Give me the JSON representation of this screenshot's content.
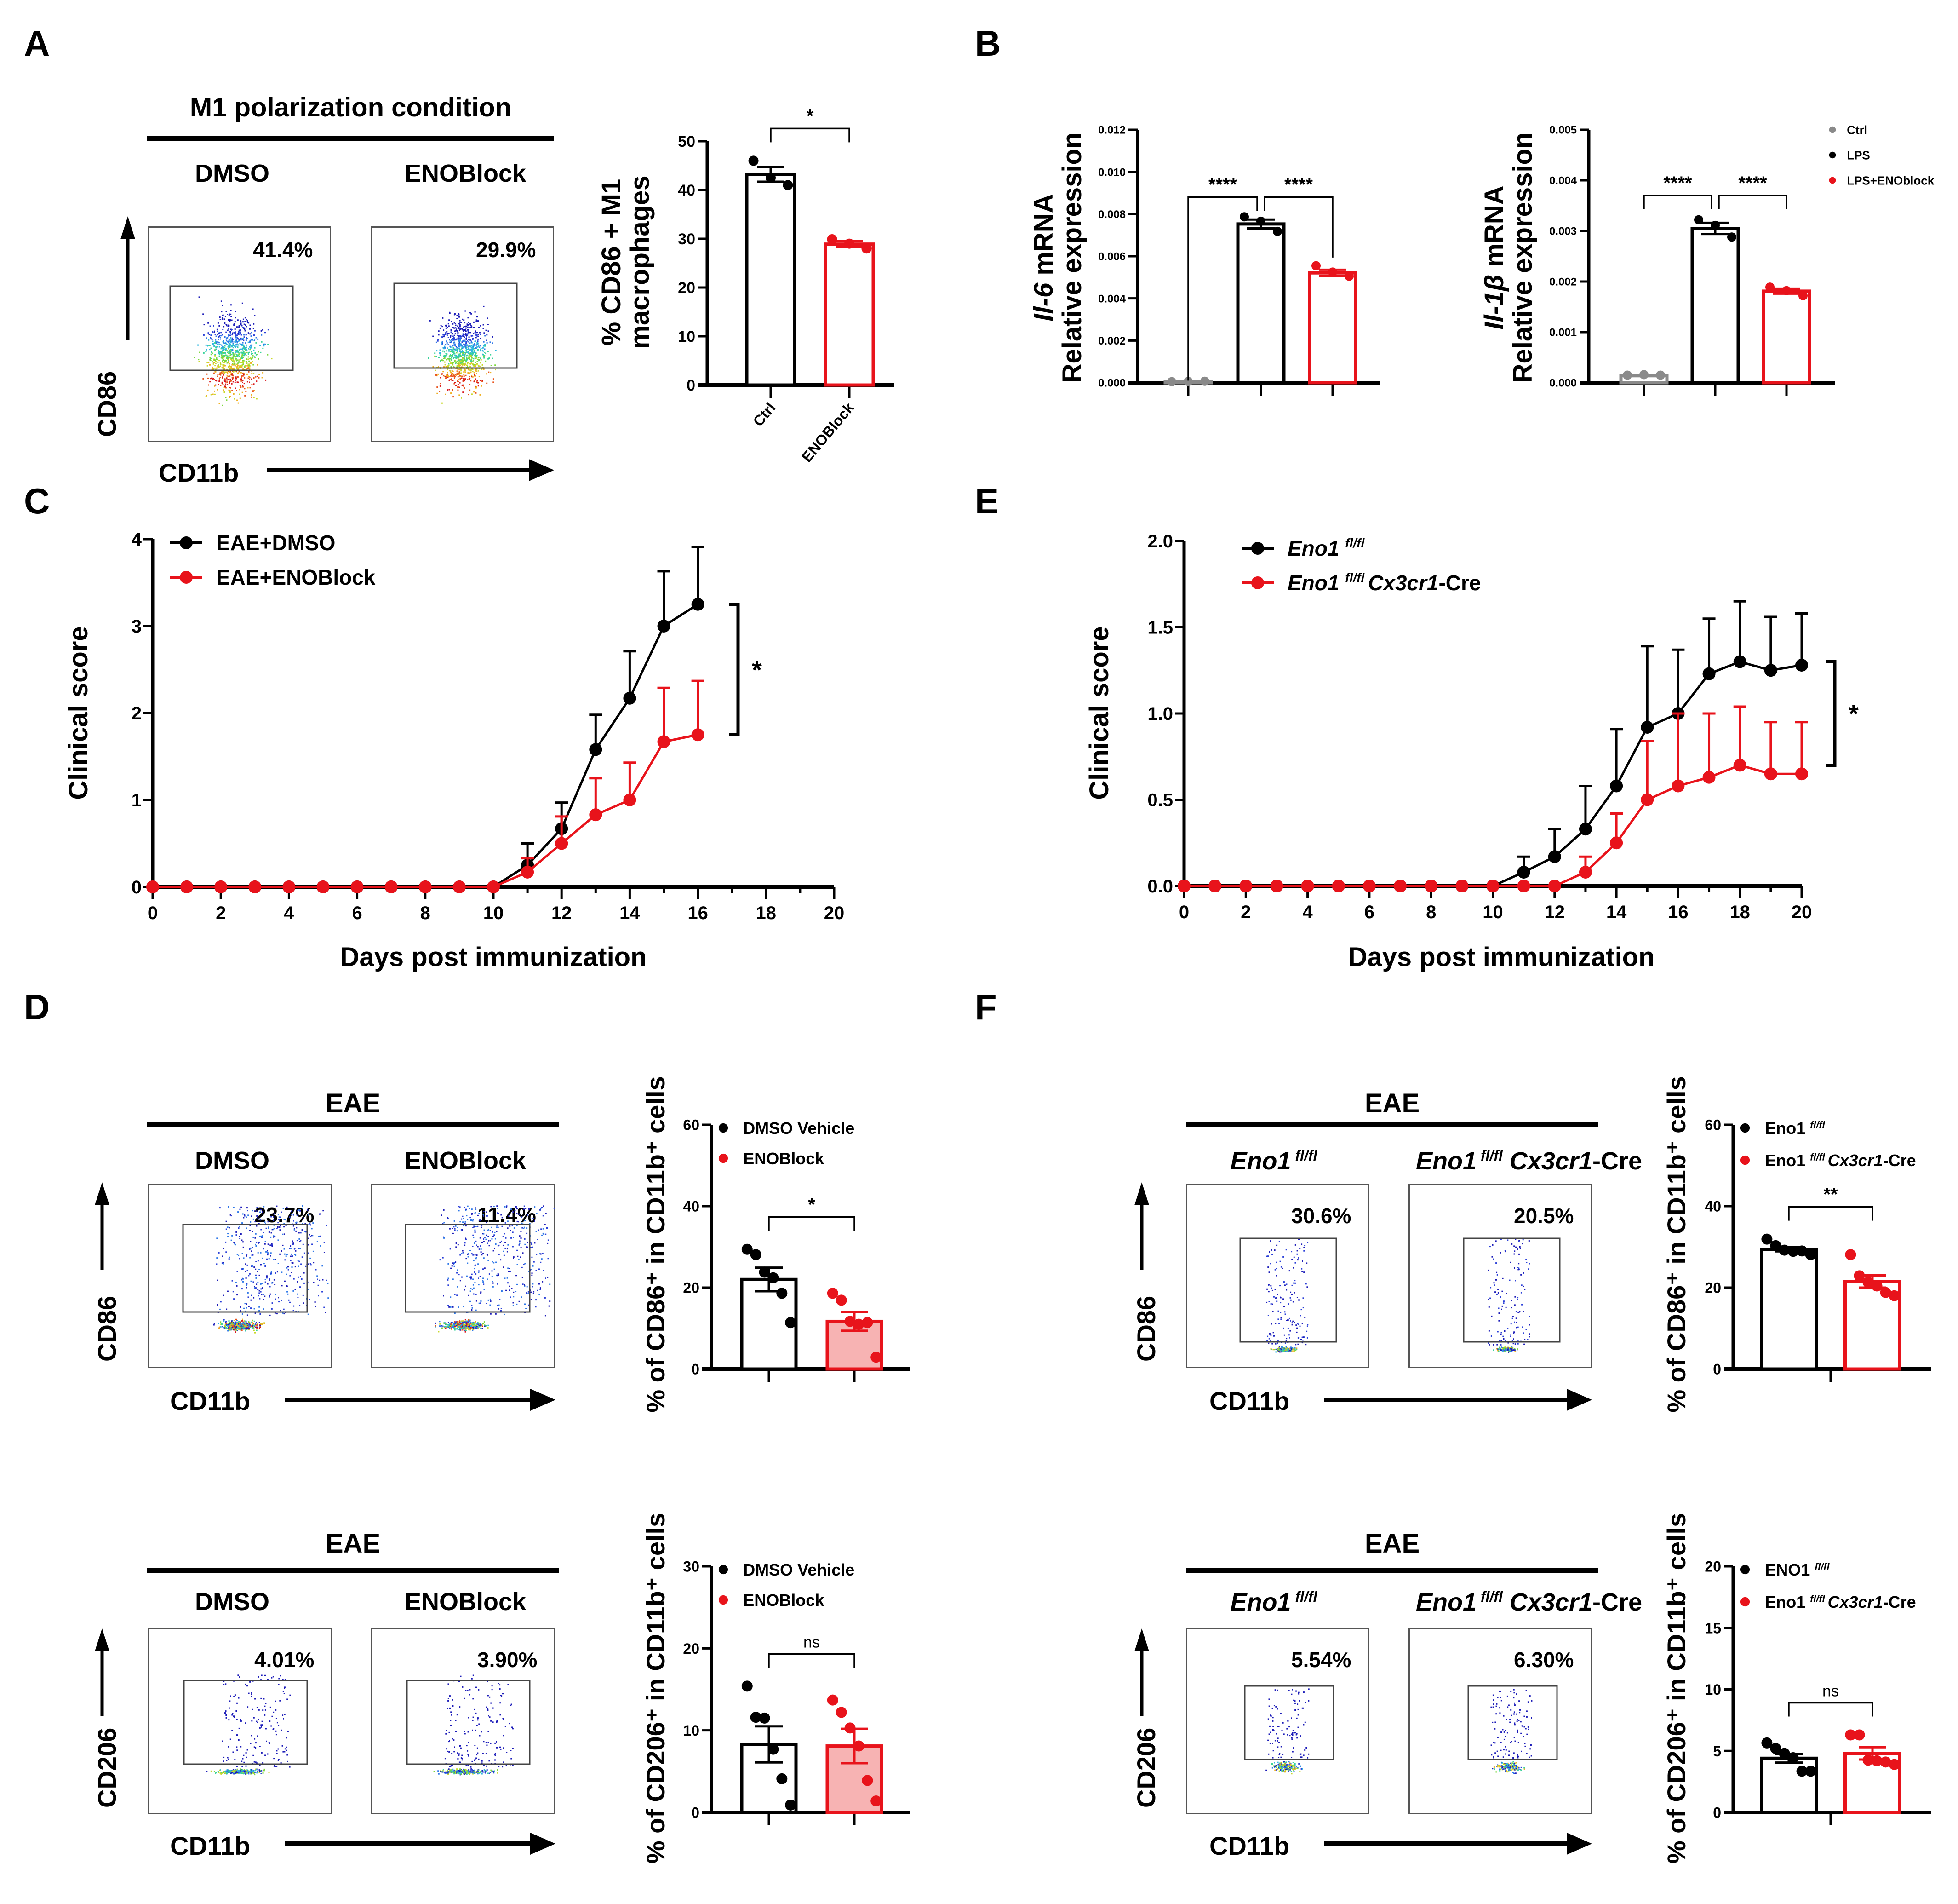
{
  "figure": {
    "panel_labels": [
      "A",
      "B",
      "C",
      "D",
      "E",
      "F"
    ]
  },
  "panelA": {
    "title": "M1 polarization condition",
    "conditions": [
      "DMSO",
      "ENOBlock"
    ],
    "flow_percentages": [
      "41.4%",
      "29.9%"
    ],
    "y_marker": "CD86",
    "x_marker": "CD11b"
  },
  "panelD_top": {
    "title": "EAE",
    "conditions": [
      "DMSO",
      "ENOBlock"
    ],
    "flow_percentages": [
      "23.7%",
      "11.4%"
    ],
    "y_marker": "CD86",
    "x_marker": "CD11b"
  },
  "panelD_bottom": {
    "title": "EAE",
    "conditions": [
      "DMSO",
      "ENOBlock"
    ],
    "flow_percentages": [
      "4.01%",
      "3.90%"
    ],
    "y_marker": "CD206",
    "x_marker": "CD11b"
  },
  "panelF_top": {
    "title": "EAE",
    "conditions": [
      {
        "gene": "Eno1",
        "sup": "fl/fl",
        "suffix_italic": "",
        "suffix": ""
      },
      {
        "gene": "Eno1",
        "sup": "fl/fl",
        "suffix_italic": "Cx3cr1",
        "suffix": "-Cre"
      }
    ],
    "flow_percentages": [
      "30.6%",
      "20.5%"
    ],
    "y_marker": "CD86",
    "x_marker": "CD11b"
  },
  "panelF_bottom": {
    "title": "EAE",
    "conditions": [
      {
        "gene": "Eno1",
        "sup": "fl/fl",
        "suffix_italic": "",
        "suffix": ""
      },
      {
        "gene": "Eno1",
        "sup": "fl/fl",
        "suffix_italic": "Cx3cr1",
        "suffix": "-Cre"
      }
    ],
    "flow_percentages": [
      "5.54%",
      "6.30%"
    ],
    "y_marker": "CD206",
    "x_marker": "CD11b"
  },
  "colors": {
    "black": "#000000",
    "red": "#e8131b",
    "gray": "#8a8a8a",
    "red_fill": "#f7b3b3"
  },
  "chart_data": [
    {
      "id": "A_bar",
      "type": "bar",
      "ylabel_lines": [
        "% CD86 + M1",
        "macrophages"
      ],
      "ylim": [
        0,
        50
      ],
      "yticks": [
        0,
        10,
        20,
        30,
        40,
        50
      ],
      "ytick_labels": [
        "0",
        "10",
        "20",
        "30",
        "40",
        "50"
      ],
      "categories": [
        "Ctrl",
        "ENOBlock"
      ],
      "category_labels_rotated": true,
      "values": [
        43.2,
        28.9
      ],
      "sem": [
        1.5,
        0.6
      ],
      "points": [
        [
          46.0,
          42.5,
          41.0
        ],
        [
          29.9,
          29.0,
          28.0
        ]
      ],
      "bar_colors": [
        "black",
        "red"
      ],
      "bar_fills": [
        "none",
        "none"
      ],
      "significance": [
        {
          "from": 0,
          "to": 1,
          "label": "*"
        }
      ],
      "legend": []
    },
    {
      "id": "B_il6",
      "type": "bar",
      "ylabel_lines": [
        "Il-6 mRNA",
        "Relative expression"
      ],
      "ylabel_italic_word": [
        "Il-6",
        ""
      ],
      "ylim": [
        0,
        0.012
      ],
      "yticks": [
        0,
        0.002,
        0.004,
        0.006,
        0.008,
        0.01,
        0.012
      ],
      "ytick_labels": [
        "0.000",
        "0.002",
        "0.004",
        "0.006",
        "0.008",
        "0.010",
        "0.012"
      ],
      "categories": [
        "Ctrl",
        "LPS",
        "LPS+ENOblock"
      ],
      "category_labels_rotated": false,
      "show_category_labels": false,
      "values": [
        6e-05,
        0.00753,
        0.00521
      ],
      "sem": [
        1e-05,
        0.00021,
        0.00015
      ],
      "points": [
        [
          5e-05,
          6e-05,
          7e-05
        ],
        [
          0.00787,
          0.00766,
          0.00718
        ],
        [
          0.00555,
          0.00525,
          0.00505
        ]
      ],
      "bar_colors": [
        "gray",
        "black",
        "red"
      ],
      "bar_fills": [
        "none",
        "none",
        "none"
      ],
      "significance": [
        {
          "from": 0,
          "to": 1,
          "label": "****"
        },
        {
          "from": 1,
          "to": 2,
          "label": "****"
        }
      ],
      "legend": []
    },
    {
      "id": "B_il1b",
      "type": "bar",
      "ylabel_lines": [
        "Il-1β mRNA",
        "Relative expression"
      ],
      "ylabel_italic_word": [
        "Il-1β",
        ""
      ],
      "ylim": [
        0,
        0.005
      ],
      "yticks": [
        0,
        0.001,
        0.002,
        0.003,
        0.004,
        0.005
      ],
      "ytick_labels": [
        "0.000",
        "0.001",
        "0.002",
        "0.003",
        "0.004",
        "0.005"
      ],
      "categories": [
        "Ctrl",
        "LPS",
        "LPS+ENOblock"
      ],
      "category_labels_rotated": false,
      "show_category_labels": false,
      "values": [
        0.00014,
        0.00305,
        0.00181
      ],
      "sem": [
        1e-05,
        0.00011,
        5e-05
      ],
      "points": [
        [
          0.00015,
          0.00016,
          0.00015
        ],
        [
          0.00322,
          0.00311,
          0.00288
        ],
        [
          0.00189,
          0.00182,
          0.00172
        ]
      ],
      "bar_colors": [
        "gray",
        "black",
        "red"
      ],
      "bar_fills": [
        "none",
        "none",
        "none"
      ],
      "significance": [
        {
          "from": 0,
          "to": 1,
          "label": "****"
        },
        {
          "from": 1,
          "to": 2,
          "label": "****"
        }
      ],
      "legend": [
        {
          "label": "Ctrl",
          "color": "gray"
        },
        {
          "label": "LPS",
          "color": "black"
        },
        {
          "label": "LPS+ENOblock",
          "color": "red"
        }
      ]
    },
    {
      "id": "C_line",
      "type": "line",
      "xlabel": "Days post immunization",
      "ylabel": "Clinical score",
      "xlim": [
        0,
        20
      ],
      "ylim": [
        0,
        4
      ],
      "xticks": [
        0,
        2,
        4,
        6,
        8,
        10,
        12,
        14,
        16,
        18,
        20
      ],
      "yticks": [
        0,
        1,
        2,
        3,
        4
      ],
      "ytick_labels": [
        "0",
        "1",
        "2",
        "3",
        "4"
      ],
      "x": [
        0,
        1,
        2,
        3,
        4,
        5,
        6,
        7,
        8,
        9,
        10,
        11,
        12,
        13,
        14,
        15,
        16
      ],
      "series": [
        {
          "name": "EAE+DMSO",
          "color": "black",
          "values": [
            0,
            0,
            0,
            0,
            0,
            0,
            0,
            0,
            0,
            0,
            0,
            0.25,
            0.67,
            1.58,
            2.17,
            3.0,
            3.25
          ],
          "err_upper": [
            0,
            0,
            0,
            0,
            0,
            0,
            0,
            0,
            0,
            0,
            0,
            0.5,
            0.97,
            1.98,
            2.71,
            3.63,
            3.91
          ]
        },
        {
          "name": "EAE+ENOBlock",
          "color": "red",
          "values": [
            0,
            0,
            0,
            0,
            0,
            0,
            0,
            0,
            0,
            0,
            0,
            0.17,
            0.5,
            0.83,
            1.0,
            1.67,
            1.75
          ],
          "err_upper": [
            0,
            0,
            0,
            0,
            0,
            0,
            0,
            0,
            0,
            0,
            0,
            0.33,
            0.81,
            1.25,
            1.43,
            2.29,
            2.37
          ]
        }
      ],
      "significance": {
        "label": "*",
        "y_range": [
          1.75,
          3.25
        ]
      },
      "legend_position": "top-left"
    },
    {
      "id": "E_line",
      "type": "line",
      "xlabel": "Days post immunization",
      "ylabel": "Clinical score",
      "xlim": [
        0,
        20
      ],
      "ylim": [
        0,
        2.0
      ],
      "xticks": [
        0,
        2,
        4,
        6,
        8,
        10,
        12,
        14,
        16,
        18,
        20
      ],
      "yticks": [
        0,
        0.5,
        1.0,
        1.5,
        2.0
      ],
      "ytick_labels": [
        "0.0",
        "0.5",
        "1.0",
        "1.5",
        "2.0"
      ],
      "x": [
        0,
        1,
        2,
        3,
        4,
        5,
        6,
        7,
        8,
        9,
        10,
        11,
        12,
        13,
        14,
        15,
        16,
        17,
        18,
        19,
        20
      ],
      "series": [
        {
          "name": "Eno1",
          "name_sup": "fl/fl",
          "name_suffix_italic": "",
          "name_suffix": "",
          "color": "black",
          "values": [
            0,
            0,
            0,
            0,
            0,
            0,
            0,
            0,
            0,
            0,
            0,
            0.08,
            0.17,
            0.33,
            0.58,
            0.92,
            1.0,
            1.23,
            1.3,
            1.25,
            1.28
          ],
          "err_upper": [
            0,
            0,
            0,
            0,
            0,
            0,
            0,
            0,
            0,
            0,
            0,
            0.17,
            0.33,
            0.58,
            0.91,
            1.39,
            1.37,
            1.55,
            1.65,
            1.56,
            1.58
          ]
        },
        {
          "name": "Eno1",
          "name_sup": "fl/fl",
          "name_suffix_italic": "Cx3cr1",
          "name_suffix": "-Cre",
          "color": "red",
          "values": [
            0,
            0,
            0,
            0,
            0,
            0,
            0,
            0,
            0,
            0,
            0,
            0,
            0,
            0.08,
            0.25,
            0.5,
            0.58,
            0.63,
            0.7,
            0.65,
            0.65
          ],
          "err_upper": [
            0,
            0,
            0,
            0,
            0,
            0,
            0,
            0,
            0,
            0,
            0,
            0,
            0,
            0.17,
            0.42,
            0.84,
            1.0,
            1.0,
            1.04,
            0.95,
            0.95
          ]
        }
      ],
      "significance": {
        "label": "*",
        "y_range": [
          0.7,
          1.3
        ]
      },
      "legend_position": "top-left"
    },
    {
      "id": "D_cd86_bar",
      "type": "bar",
      "ylabel_html": "% of CD86⁺ in CD11b⁺ cells",
      "ylim": [
        0,
        60
      ],
      "yticks": [
        0,
        20,
        40,
        60
      ],
      "ytick_labels": [
        "0",
        "20",
        "40",
        "60"
      ],
      "categories": [
        "DMSO Vehicle",
        "ENOBlock"
      ],
      "show_category_labels": false,
      "values": [
        22.0,
        11.7
      ],
      "sem": [
        2.9,
        2.3
      ],
      "points": [
        [
          29.4,
          28.1,
          23.8,
          22.4,
          18.6,
          11.4
        ],
        [
          18.6,
          16.9,
          11.7,
          11.0,
          11.4,
          2.9
        ]
      ],
      "bar_colors": [
        "black",
        "red"
      ],
      "bar_fills": [
        "none",
        "red_fill"
      ],
      "significance": [
        {
          "from": 0,
          "to": 1,
          "label": "*"
        }
      ],
      "legend": [
        {
          "label": "DMSO Vehicle",
          "color": "black"
        },
        {
          "label": "ENOBlock",
          "color": "red"
        }
      ]
    },
    {
      "id": "D_cd206_bar",
      "type": "bar",
      "ylabel_html": "% of CD206⁺ in CD11b⁺ cells",
      "ylim": [
        0,
        30
      ],
      "yticks": [
        0,
        10,
        20,
        30
      ],
      "ytick_labels": [
        "0",
        "10",
        "20",
        "30"
      ],
      "categories": [
        "DMSO Vehicle",
        "ENOBlock"
      ],
      "show_category_labels": false,
      "values": [
        8.3,
        8.1
      ],
      "sem": [
        2.2,
        2.1
      ],
      "points": [
        [
          15.4,
          11.6,
          11.5,
          7.7,
          4.1,
          0.9
        ],
        [
          13.7,
          12.2,
          10.3,
          8.1,
          3.9,
          1.4
        ]
      ],
      "bar_colors": [
        "black",
        "red"
      ],
      "bar_fills": [
        "none",
        "red_fill"
      ],
      "significance": [
        {
          "from": 0,
          "to": 1,
          "label": "ns"
        }
      ],
      "legend": [
        {
          "label": "DMSO Vehicle",
          "color": "black"
        },
        {
          "label": "ENOBlock",
          "color": "red"
        }
      ]
    },
    {
      "id": "F_cd86_bar",
      "type": "bar",
      "ylabel_html": "% of CD86⁺ in CD11b⁺ cells",
      "ylim": [
        0,
        60
      ],
      "yticks": [
        0,
        20,
        40,
        60
      ],
      "ytick_labels": [
        "0",
        "20",
        "40",
        "60"
      ],
      "categories": [
        "Eno1 fl/fl",
        "Eno1 fl/fl Cx3cr1-Cre"
      ],
      "show_category_labels": false,
      "values": [
        29.4,
        21.5
      ],
      "sem": [
        0.5,
        1.5
      ],
      "points": [
        [
          31.9,
          30.3,
          29.2,
          28.9,
          29.0,
          28.1
        ],
        [
          28.1,
          22.9,
          21.3,
          20.4,
          18.8,
          18.0
        ]
      ],
      "bar_colors": [
        "black",
        "red"
      ],
      "bar_fills": [
        "none",
        "none"
      ],
      "significance": [
        {
          "from": 0,
          "to": 1,
          "label": "**"
        }
      ],
      "legend": [
        {
          "label": "Eno1",
          "sup": "fl/fl",
          "suffix_italic": "",
          "suffix": "",
          "color": "black"
        },
        {
          "label": "Eno1",
          "sup": "fl/fl",
          "suffix_italic": "Cx3cr1",
          "suffix": "-Cre",
          "color": "red"
        }
      ]
    },
    {
      "id": "F_cd206_bar",
      "type": "bar",
      "ylabel_html": "% of CD206⁺ in CD11b⁺ cells",
      "ylim": [
        0,
        20
      ],
      "yticks": [
        0,
        5,
        10,
        15,
        20
      ],
      "ytick_labels": [
        "0",
        "5",
        "10",
        "15",
        "20"
      ],
      "categories": [
        "ENO1 fl/fl",
        "Eno1 fl/fl Cx3cr1-Cre"
      ],
      "show_category_labels": false,
      "values": [
        4.4,
        4.8
      ],
      "sem": [
        0.35,
        0.5
      ],
      "points": [
        [
          5.65,
          5.2,
          4.8,
          4.45,
          3.35,
          3.35
        ],
        [
          6.3,
          6.3,
          4.25,
          4.2,
          4.1,
          3.9
        ]
      ],
      "bar_colors": [
        "black",
        "red"
      ],
      "bar_fills": [
        "none",
        "none"
      ],
      "significance": [
        {
          "from": 0,
          "to": 1,
          "label": "ns"
        }
      ],
      "legend": [
        {
          "label": "ENO1",
          "sup": "fl/fl",
          "suffix_italic": "",
          "suffix": "",
          "color": "black"
        },
        {
          "label": "Eno1",
          "sup": "fl/fl",
          "suffix_italic": "Cx3cr1",
          "suffix": "-Cre",
          "color": "red"
        }
      ]
    }
  ]
}
